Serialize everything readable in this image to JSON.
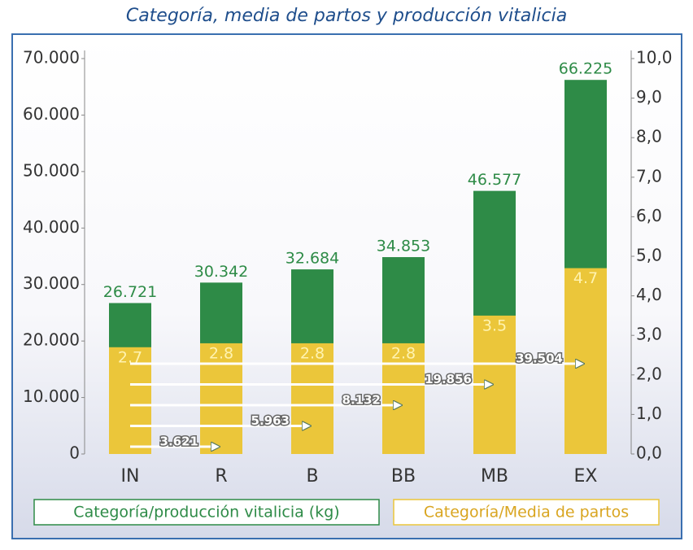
{
  "chart_data": {
    "type": "bar",
    "title": "Categoría, media de partos y producción vitalicia",
    "categories": [
      "IN",
      "R",
      "B",
      "BB",
      "MB",
      "EX"
    ],
    "series": [
      {
        "name": "Categoría/producción vitalicia (kg)",
        "color": "#2e8b47",
        "values": [
          26721,
          30342,
          32684,
          34853,
          46577,
          66225
        ],
        "value_labels": [
          "26.721",
          "30.342",
          "32.684",
          "34.853",
          "46.577",
          "66.225"
        ]
      },
      {
        "name": "Categoría/Media de partos",
        "color": "#ebc63a",
        "axis": "y2",
        "values": [
          2.7,
          2.8,
          2.8,
          2.8,
          3.5,
          4.7
        ]
      }
    ],
    "differences": {
      "values": [
        3621,
        5963,
        8132,
        19856,
        39504
      ],
      "value_labels": [
        "3.621",
        "5.963",
        "8.132",
        "19.856",
        "39.504"
      ]
    },
    "ylim": [
      0,
      70000
    ],
    "yticks": [
      0,
      {
        "value": 10000,
        "label": "10.000"
      },
      {
        "value": 20000,
        "label": "20.000"
      },
      {
        "value": 30000,
        "label": "30.000"
      },
      {
        "value": 40000,
        "label": "40.000"
      },
      {
        "value": 50000,
        "label": "50.000"
      },
      {
        "value": 60000,
        "label": "60.000"
      },
      {
        "value": 70000,
        "label": "70.000"
      }
    ],
    "y2lim": [
      0,
      10
    ],
    "y2ticks": [
      {
        "value": 0,
        "label": "0,0"
      },
      {
        "value": 1,
        "label": "1,0"
      },
      {
        "value": 2,
        "label": "2,0"
      },
      {
        "value": 3,
        "label": "3,0"
      },
      {
        "value": 4,
        "label": "4,0"
      },
      {
        "value": 5,
        "label": "5,0"
      },
      {
        "value": 6,
        "label": "6,0"
      },
      {
        "value": 7,
        "label": "7,0"
      },
      {
        "value": 8,
        "label": "8,0"
      },
      {
        "value": 9,
        "label": "9,0"
      },
      {
        "value": 10,
        "label": "10,0"
      }
    ]
  }
}
